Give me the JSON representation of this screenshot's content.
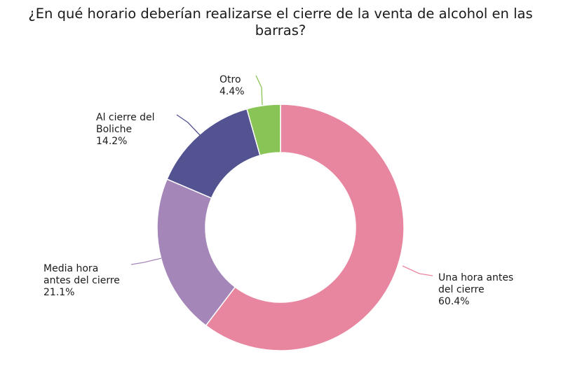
{
  "chart_data": {
    "type": "pie",
    "donut": true,
    "title_lines": [
      "¿En qué horario deberían realizarse el cierre de la venta de alcohol en las",
      "barras?"
    ],
    "slices": [
      {
        "label_lines": [
          "Una hora antes",
          "del cierre"
        ],
        "value": 60.4,
        "value_label": "60.4%",
        "color": "#e8859f"
      },
      {
        "label_lines": [
          "Media hora",
          "antes del cierre"
        ],
        "value": 21.1,
        "value_label": "21.1%",
        "color": "#a586b8"
      },
      {
        "label_lines": [
          "Al cierre del",
          "Boliche"
        ],
        "value": 14.2,
        "value_label": "14.2%",
        "color": "#535391"
      },
      {
        "label_lines": [
          "Otro"
        ],
        "value": 4.4,
        "value_label": "4.4%",
        "color": "#88c456"
      }
    ],
    "legend": "none",
    "start": "top",
    "direction": "clockwise"
  }
}
